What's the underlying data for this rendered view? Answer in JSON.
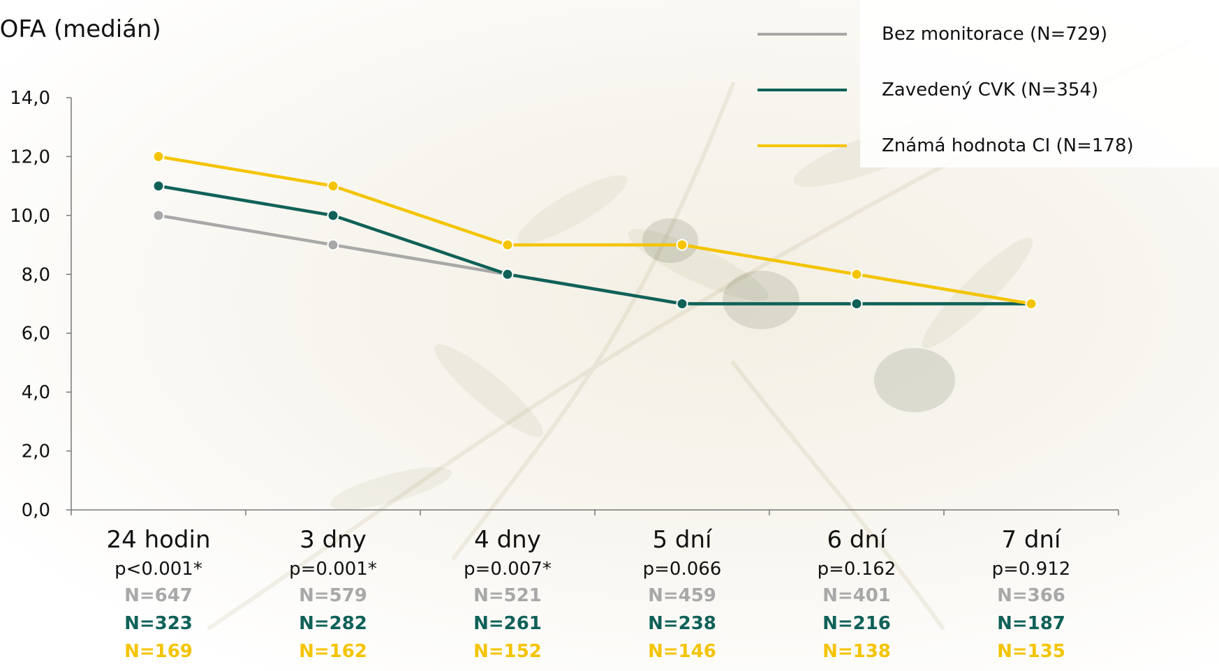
{
  "colors": {
    "gray": "#a8a8a8",
    "teal": "#0f6158",
    "yellow": "#f4c400"
  },
  "chart_data": {
    "type": "line",
    "ylabel": "SOFA (medián)",
    "ylim": [
      0,
      14
    ],
    "yticks": [
      "0,0",
      "2,0",
      "4,0",
      "6,0",
      "8,0",
      "10,0",
      "12,0",
      "14,0"
    ],
    "categories": [
      "24 hodin",
      "3 dny",
      "4 dny",
      "5 dní",
      "6 dní",
      "7 dní"
    ],
    "pvalues": [
      "p<0.001*",
      "p=0.001*",
      "p=0.007*",
      "p=0.066",
      "p=0.162",
      "p=0.912"
    ],
    "legend_position": "top-right",
    "series": [
      {
        "name": "Bez monitorace (N=729)",
        "color": "gray",
        "values": [
          10,
          9,
          8,
          7,
          7,
          7
        ],
        "n": [
          "N=647",
          "N=579",
          "N=521",
          "N=459",
          "N=401",
          "N=366"
        ]
      },
      {
        "name": "Zavedený CVK (N=354)",
        "color": "teal",
        "values": [
          11,
          10,
          8,
          7,
          7,
          7
        ],
        "n": [
          "N=323",
          "N=282",
          "N=261",
          "N=238",
          "N=216",
          "N=187"
        ]
      },
      {
        "name": "Známá hodnota CI (N=178)",
        "color": "yellow",
        "values": [
          12,
          11,
          9,
          9,
          8,
          7
        ],
        "n": [
          "N=169",
          "N=162",
          "N=152",
          "N=146",
          "N=138",
          "N=135"
        ]
      }
    ]
  }
}
